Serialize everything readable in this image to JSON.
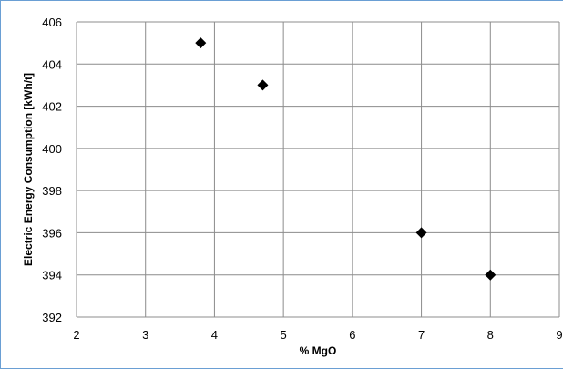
{
  "chart_data": {
    "type": "scatter",
    "title": "",
    "xlabel": "% MgO",
    "ylabel": "Electric Energy Consumption [kWh/t]",
    "xlim": [
      2,
      9
    ],
    "ylim": [
      392,
      406
    ],
    "xticks": [
      2,
      3,
      4,
      5,
      6,
      7,
      8,
      9
    ],
    "yticks": [
      392,
      394,
      396,
      398,
      400,
      402,
      404,
      406
    ],
    "grid": true,
    "marker": "diamond",
    "marker_color": "#000000",
    "points": [
      {
        "x": 3.8,
        "y": 405
      },
      {
        "x": 4.7,
        "y": 403
      },
      {
        "x": 7.0,
        "y": 396
      },
      {
        "x": 8.0,
        "y": 394
      }
    ]
  }
}
